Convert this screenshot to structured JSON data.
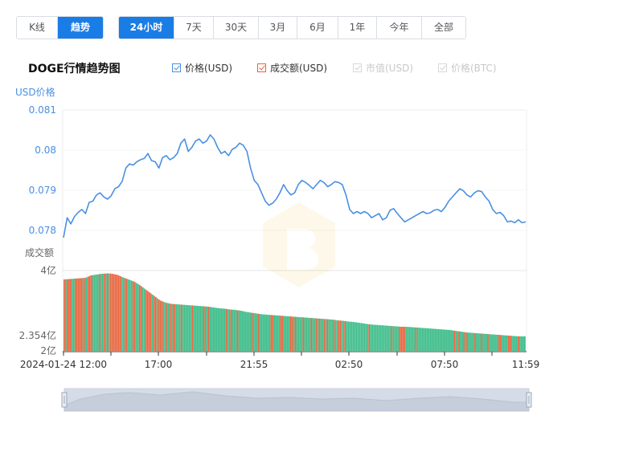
{
  "view_tabs": [
    {
      "label": "K线",
      "active": false
    },
    {
      "label": "趋势",
      "active": true
    }
  ],
  "range_tabs": [
    {
      "label": "24小时",
      "active": true
    },
    {
      "label": "7天",
      "active": false
    },
    {
      "label": "30天",
      "active": false
    },
    {
      "label": "3月",
      "active": false
    },
    {
      "label": "6月",
      "active": false
    },
    {
      "label": "1年",
      "active": false
    },
    {
      "label": "今年",
      "active": false
    },
    {
      "label": "全部",
      "active": false
    }
  ],
  "legend": [
    {
      "label": "价格(USD)",
      "checked": true,
      "enabled": true,
      "color": "#4a90e2"
    },
    {
      "label": "成交额(USD)",
      "checked": true,
      "enabled": true,
      "color": "#e8653e"
    },
    {
      "label": "市值(USD)",
      "checked": true,
      "enabled": false,
      "color": "#cfcfcf"
    },
    {
      "label": "价格(BTC)",
      "checked": true,
      "enabled": false,
      "color": "#cfcfcf"
    }
  ],
  "colors": {
    "price_line": "#4a90e2",
    "volume_up": "#e8653e",
    "volume_down": "#3dbd8a",
    "price_axis_text": "#4a90e2",
    "accent": "#1a7de6"
  },
  "chart_data": {
    "type": "line",
    "title": "DOGE行情趋势图",
    "x_tick_labels": [
      "2024-01-24 12:00",
      "17:00",
      "21:55",
      "02:50",
      "07:50",
      "11:59"
    ],
    "price": {
      "axis_label": "USD价格",
      "y_ticks": [
        "0.081",
        "0.08",
        "0.079",
        "0.078"
      ],
      "ylim": [
        0.0779,
        0.081
      ],
      "values": [
        0.07792,
        0.0784,
        0.07825,
        0.07843,
        0.07853,
        0.0786,
        0.0785,
        0.07877,
        0.0788,
        0.07895,
        0.079,
        0.0789,
        0.07885,
        0.07893,
        0.0791,
        0.07915,
        0.07928,
        0.0796,
        0.0797,
        0.07967,
        0.07975,
        0.0798,
        0.07983,
        0.07995,
        0.07978,
        0.07975,
        0.0796,
        0.07985,
        0.0799,
        0.0798,
        0.07985,
        0.07995,
        0.0802,
        0.0803,
        0.08,
        0.0801,
        0.08025,
        0.0803,
        0.0802,
        0.08025,
        0.0804,
        0.0803,
        0.0801,
        0.07995,
        0.08,
        0.0799,
        0.08005,
        0.0801,
        0.0802,
        0.08015,
        0.08,
        0.0796,
        0.0793,
        0.0792,
        0.079,
        0.0788,
        0.0787,
        0.07875,
        0.07885,
        0.079,
        0.0792,
        0.07905,
        0.07895,
        0.079,
        0.0792,
        0.0793,
        0.07925,
        0.07918,
        0.0791,
        0.0792,
        0.0793,
        0.07925,
        0.07915,
        0.0792,
        0.07927,
        0.07925,
        0.0792,
        0.07895,
        0.0786,
        0.0785,
        0.07855,
        0.0785,
        0.07855,
        0.0785,
        0.0784,
        0.07845,
        0.0785,
        0.07835,
        0.0784,
        0.07858,
        0.07862,
        0.0785,
        0.0784,
        0.0783,
        0.07835,
        0.0784,
        0.07845,
        0.0785,
        0.07855,
        0.0785,
        0.07852,
        0.07858,
        0.0786,
        0.07855,
        0.07865,
        0.0788,
        0.0789,
        0.079,
        0.0791,
        0.07905,
        0.07895,
        0.0789,
        0.079,
        0.07905,
        0.07903,
        0.0789,
        0.0788,
        0.0786,
        0.0785,
        0.07853,
        0.07845,
        0.0783,
        0.07832,
        0.07828,
        0.07835,
        0.07828,
        0.0783
      ]
    },
    "volume": {
      "axis_label": "成交额",
      "y_ticks": [
        "4亿",
        "2.354亿",
        "2亿"
      ],
      "ylim": [
        2,
        4
      ],
      "values": [
        3.78,
        3.79,
        3.8,
        3.81,
        3.82,
        3.88,
        3.9,
        3.92,
        3.93,
        3.92,
        3.89,
        3.83,
        3.78,
        3.73,
        3.65,
        3.55,
        3.45,
        3.35,
        3.25,
        3.2,
        3.17,
        3.16,
        3.15,
        3.14,
        3.13,
        3.12,
        3.11,
        3.1,
        3.08,
        3.06,
        3.05,
        3.03,
        3.02,
        3.0,
        2.97,
        2.95,
        2.93,
        2.91,
        2.9,
        2.89,
        2.88,
        2.87,
        2.86,
        2.85,
        2.84,
        2.83,
        2.82,
        2.81,
        2.8,
        2.79,
        2.78,
        2.76,
        2.75,
        2.73,
        2.72,
        2.7,
        2.68,
        2.66,
        2.65,
        2.64,
        2.63,
        2.62,
        2.61,
        2.6,
        2.6,
        2.59,
        2.58,
        2.57,
        2.56,
        2.55,
        2.54,
        2.53,
        2.52,
        2.5,
        2.48,
        2.46,
        2.45,
        2.44,
        2.43,
        2.42,
        2.41,
        2.4,
        2.39,
        2.38,
        2.37,
        2.36,
        2.36
      ]
    }
  }
}
